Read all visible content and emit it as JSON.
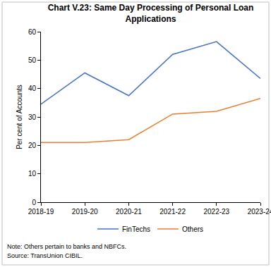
{
  "chart_data": {
    "type": "line",
    "title": "Chart V.23: Same Day Processing of Personal Loan Applications",
    "y_label": "Per cent of Accounts",
    "categories": [
      "2018-19",
      "2019-20",
      "2020-21",
      "2021-22",
      "2022-23",
      "2023-24"
    ],
    "series": [
      {
        "name": "FinTechs",
        "color": "#4472c4",
        "values": [
          34.5,
          45.5,
          37.5,
          52,
          56.5,
          43.5
        ]
      },
      {
        "name": "Others",
        "color": "#ed7d31",
        "values": [
          21,
          21,
          22,
          31,
          32,
          36.5
        ]
      }
    ],
    "ylim": [
      0,
      60
    ],
    "yticks": [
      0,
      10,
      20,
      30,
      40,
      50,
      60
    ],
    "grid": false,
    "legend": "bottom",
    "annotations": [
      "Note: Others pertain to banks and NBFCs.",
      "Source: TransUnion CIBIL."
    ]
  }
}
